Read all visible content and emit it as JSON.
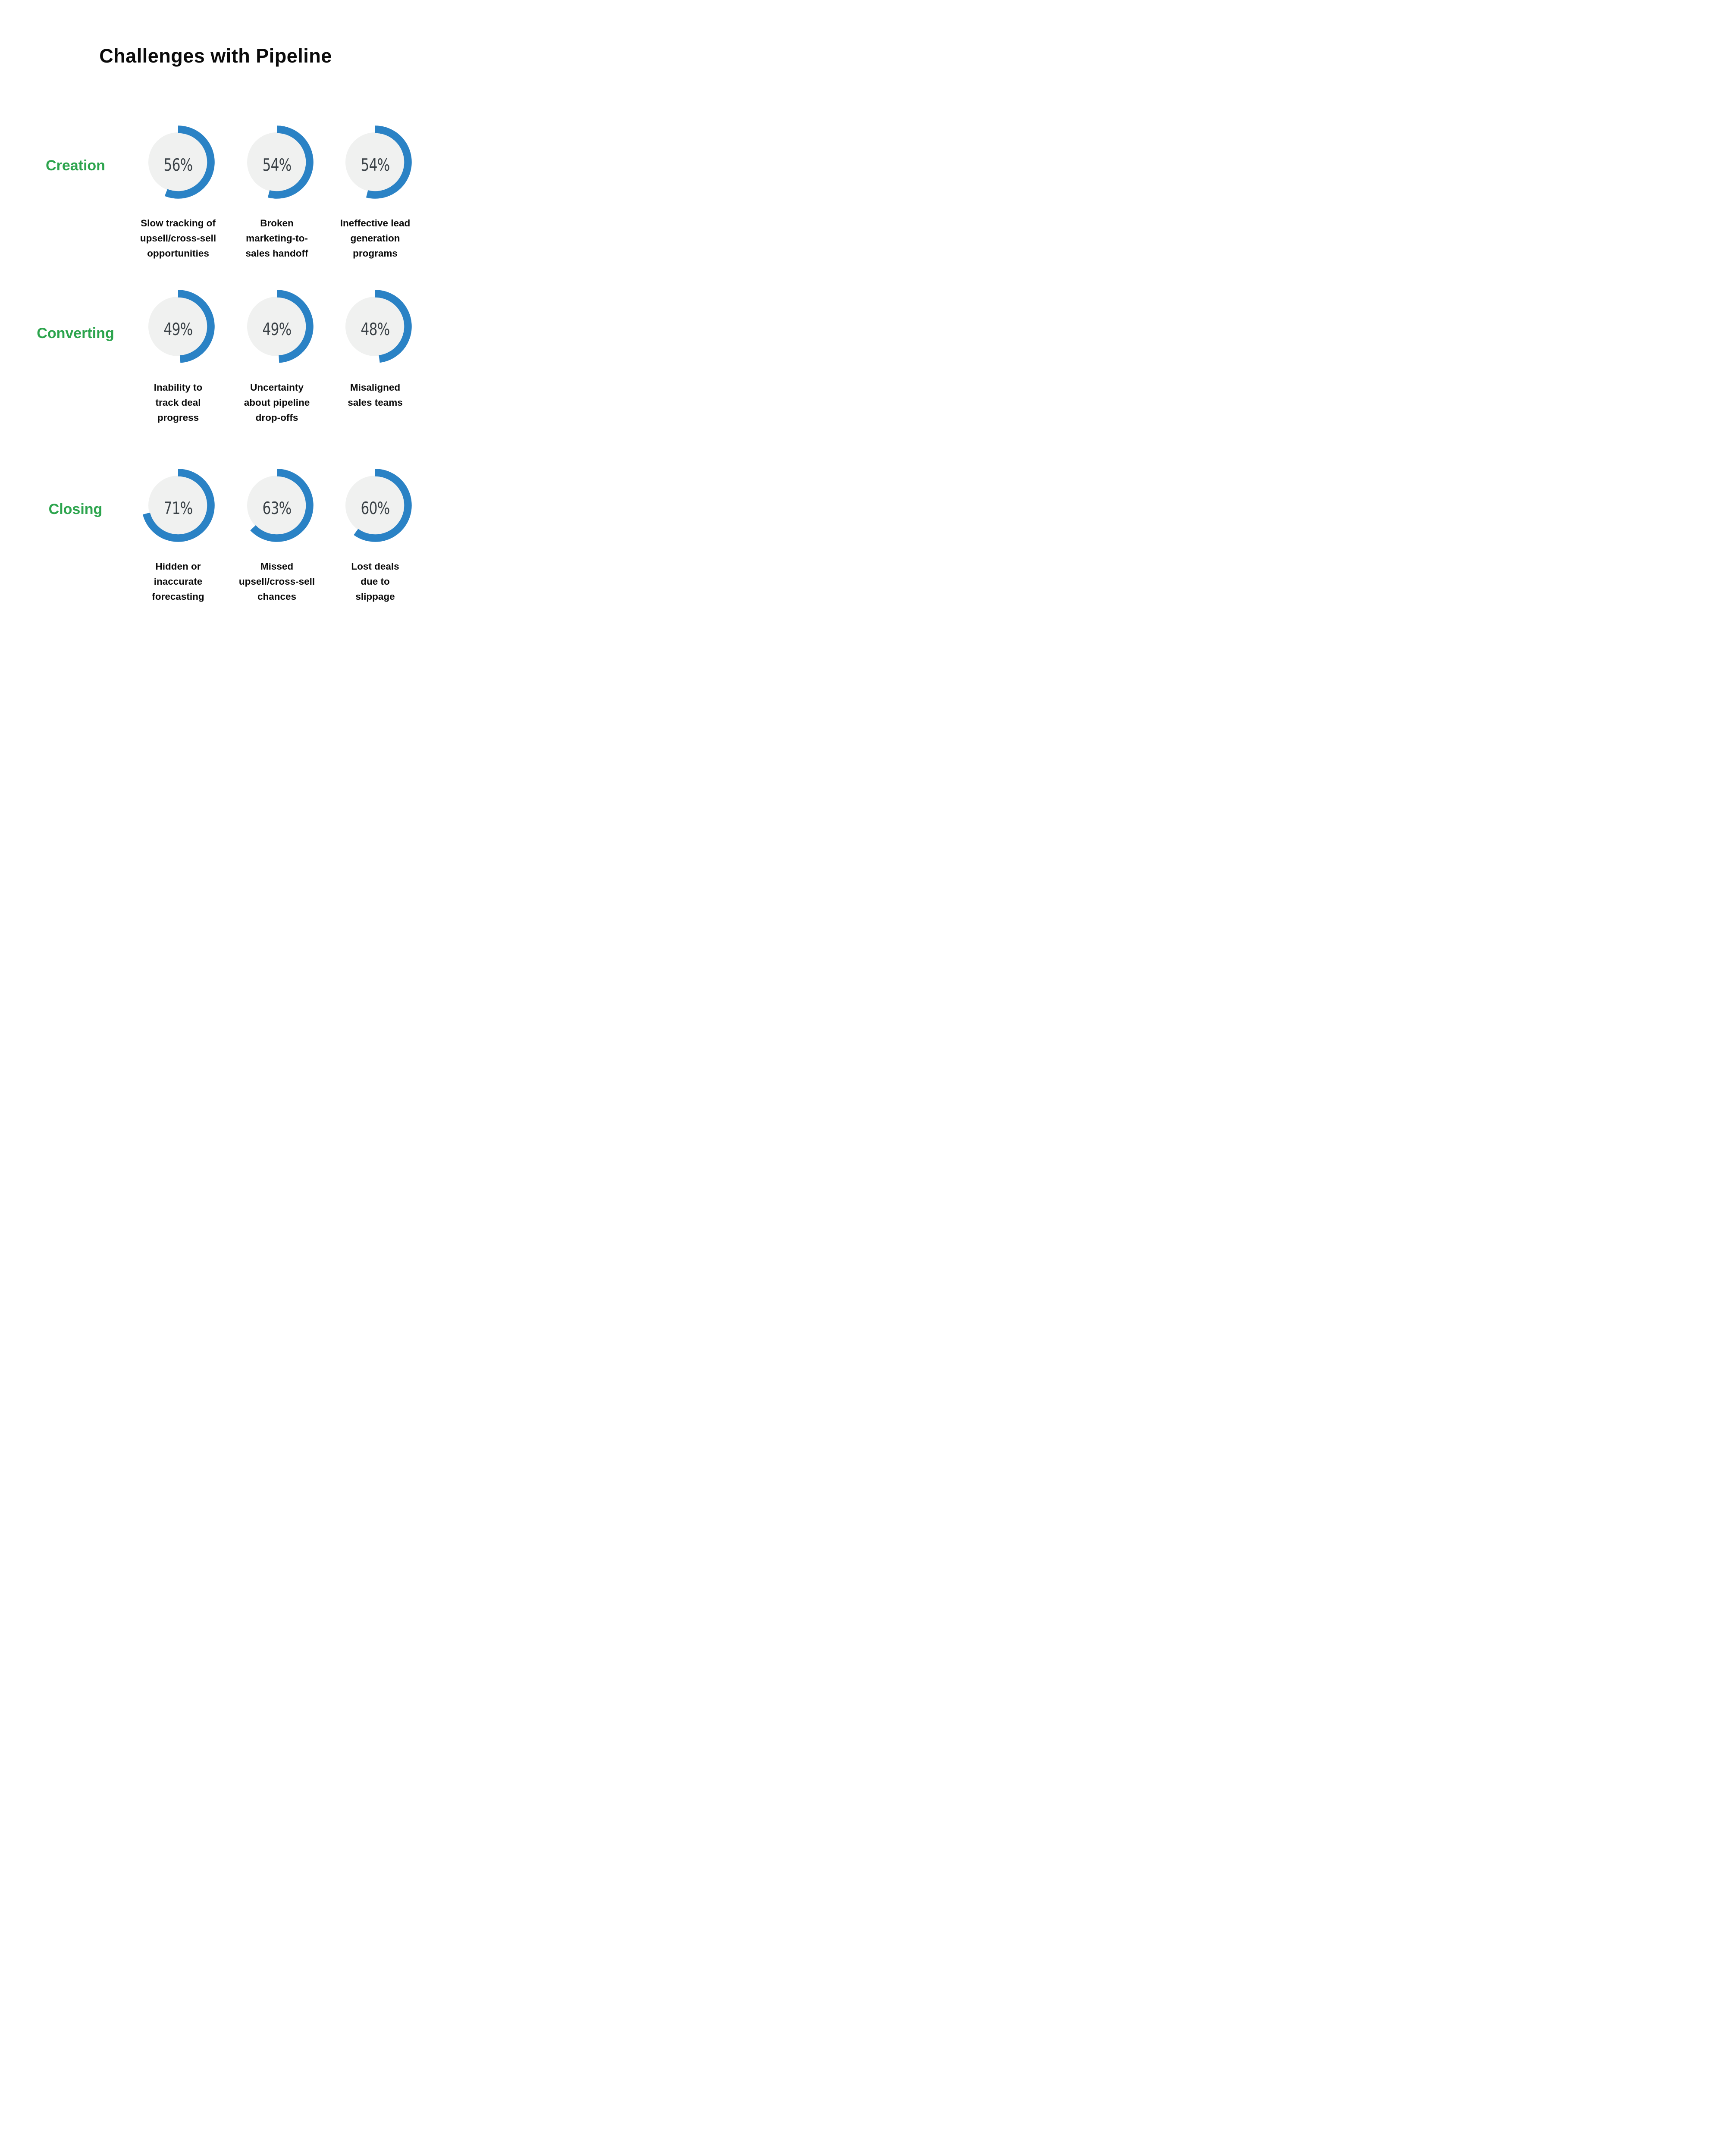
{
  "title": "Challenges with Pipeline",
  "colors": {
    "arc_blue": "#2a82c5",
    "category_green": "#2ca44d",
    "circle_gray": "#f0f1f0",
    "percent_text": "#3b4247",
    "caption_text": "#0b0b0b",
    "background": "#ffffff"
  },
  "rows": [
    {
      "category": "Creation",
      "stats": [
        {
          "pct": 56,
          "display": "56%",
          "caption": "Slow tracking of\nupsell/cross-sell\nopportunities"
        },
        {
          "pct": 54,
          "display": "54%",
          "caption": "Broken\nmarketing-to-\nsales handoff"
        },
        {
          "pct": 54,
          "display": "54%",
          "caption": "Ineffective lead\ngeneration\nprograms"
        }
      ]
    },
    {
      "category": "Converting",
      "stats": [
        {
          "pct": 49,
          "display": "49%",
          "caption": "Inability to\ntrack deal\nprogress"
        },
        {
          "pct": 49,
          "display": "49%",
          "caption": "Uncertainty\nabout pipeline\ndrop-offs"
        },
        {
          "pct": 48,
          "display": "48%",
          "caption": "Misaligned\nsales teams"
        }
      ]
    },
    {
      "category": "Closing",
      "stats": [
        {
          "pct": 71,
          "display": "71%",
          "caption": "Hidden or\ninaccurate\nforecasting"
        },
        {
          "pct": 63,
          "display": "63%",
          "caption": "Missed\nupsell/cross-sell\nchances"
        },
        {
          "pct": 60,
          "display": "60%",
          "caption": "Lost deals\ndue to\nslippage"
        }
      ]
    }
  ],
  "chart_data": {
    "type": "donut",
    "title": "Challenges with Pipeline",
    "unit": "%",
    "groups": [
      {
        "category": "Creation",
        "items": [
          {
            "label": "Slow tracking of upsell/cross-sell opportunities",
            "value": 56
          },
          {
            "label": "Broken marketing-to-sales handoff",
            "value": 54
          },
          {
            "label": "Ineffective lead generation programs",
            "value": 54
          }
        ]
      },
      {
        "category": "Converting",
        "items": [
          {
            "label": "Inability to track deal progress",
            "value": 49
          },
          {
            "label": "Uncertainty about pipeline drop-offs",
            "value": 49
          },
          {
            "label": "Misaligned sales teams",
            "value": 48
          }
        ]
      },
      {
        "category": "Closing",
        "items": [
          {
            "label": "Hidden or inaccurate forecasting",
            "value": 71
          },
          {
            "label": "Missed upsell/cross-sell chances",
            "value": 63
          },
          {
            "label": "Lost deals due to slippage",
            "value": 60
          }
        ]
      }
    ]
  }
}
